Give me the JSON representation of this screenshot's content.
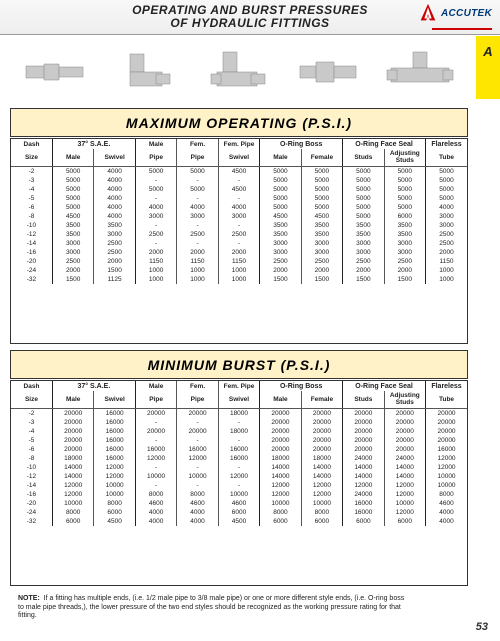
{
  "page_number": "53",
  "side_tab": "A",
  "header": {
    "title_line1": "OPERATING AND BURST PRESSURES",
    "title_line2": "OF HYDRAULIC FITTINGS",
    "brand_name": "ACCUTEK"
  },
  "section1_title": "MAXIMUM OPERATING (P.S.I.)",
  "section2_title": "MINIMUM BURST (P.S.I.)",
  "col_groups": {
    "dash": "Dash",
    "size": "Size",
    "sae": "37° S.A.E.",
    "sae_male": "Male",
    "sae_swivel": "Swivel",
    "male_pipe": "Male",
    "male_pipe2": "Pipe",
    "fem_pipe": "Fem.",
    "fem_pipe2": "Pipe",
    "fem_swivel": "Fem. Pipe",
    "fem_swivel2": "Swivel",
    "oring_boss": "O-Ring Boss",
    "ob_male": "Male",
    "ob_female": "Female",
    "face_seal": "O-Ring Face Seal",
    "fs_studs": "Studs",
    "fs_adj": "Adjusting",
    "fs_adj2": "Studs",
    "flareless": "Flareless",
    "flareless2": "Tube"
  },
  "dash_sizes": [
    "-2",
    "-3",
    "-4",
    "-5",
    "-6",
    "-8",
    "-10",
    "-12",
    "-14",
    "-16",
    "-20",
    "-24",
    "-32"
  ],
  "operating": [
    [
      "5000",
      "4000",
      "5000",
      "5000",
      "4500",
      "5000",
      "5000",
      "5000",
      "5000",
      "5000"
    ],
    [
      "5000",
      "4000",
      "-",
      "-",
      "-",
      "5000",
      "5000",
      "5000",
      "5000",
      "5000"
    ],
    [
      "5000",
      "4000",
      "5000",
      "5000",
      "4500",
      "5000",
      "5000",
      "5000",
      "5000",
      "5000"
    ],
    [
      "5000",
      "4000",
      "-",
      "-",
      "-",
      "5000",
      "5000",
      "5000",
      "5000",
      "5000"
    ],
    [
      "5000",
      "4000",
      "4000",
      "4000",
      "4000",
      "5000",
      "5000",
      "5000",
      "5000",
      "4000"
    ],
    [
      "4500",
      "4000",
      "3000",
      "3000",
      "3000",
      "4500",
      "4500",
      "5000",
      "6000",
      "3000"
    ],
    [
      "3500",
      "3500",
      "-",
      "-",
      "-",
      "3500",
      "3500",
      "3500",
      "3500",
      "3000"
    ],
    [
      "3500",
      "3000",
      "2500",
      "2500",
      "2500",
      "3500",
      "3500",
      "3500",
      "3500",
      "2500"
    ],
    [
      "3000",
      "2500",
      "-",
      "-",
      "-",
      "3000",
      "3000",
      "3000",
      "3000",
      "2500"
    ],
    [
      "3000",
      "2500",
      "2000",
      "2000",
      "2000",
      "3000",
      "3000",
      "3000",
      "3000",
      "2000"
    ],
    [
      "2500",
      "2000",
      "1150",
      "1150",
      "1150",
      "2500",
      "2500",
      "2500",
      "2500",
      "1150"
    ],
    [
      "2000",
      "1500",
      "1000",
      "1000",
      "1000",
      "2000",
      "2000",
      "2000",
      "2000",
      "1000"
    ],
    [
      "1500",
      "1125",
      "1000",
      "1000",
      "1000",
      "1500",
      "1500",
      "1500",
      "1500",
      "1000"
    ]
  ],
  "burst": [
    [
      "20000",
      "16000",
      "20000",
      "20000",
      "18000",
      "20000",
      "20000",
      "20000",
      "20000",
      "20000"
    ],
    [
      "20000",
      "16000",
      "-",
      "-",
      "-",
      "20000",
      "20000",
      "20000",
      "20000",
      "20000"
    ],
    [
      "20000",
      "16000",
      "20000",
      "20000",
      "18000",
      "20000",
      "20000",
      "20000",
      "20000",
      "20000"
    ],
    [
      "20000",
      "16000",
      "-",
      "-",
      "-",
      "20000",
      "20000",
      "20000",
      "20000",
      "20000"
    ],
    [
      "20000",
      "16000",
      "16000",
      "16000",
      "16000",
      "20000",
      "20000",
      "20000",
      "20000",
      "16000"
    ],
    [
      "18000",
      "16000",
      "12000",
      "12000",
      "16000",
      "18000",
      "18000",
      "24000",
      "24000",
      "12000"
    ],
    [
      "14000",
      "12000",
      "-",
      "-",
      "-",
      "14000",
      "14000",
      "14000",
      "14000",
      "12000"
    ],
    [
      "14000",
      "12000",
      "10000",
      "10000",
      "12000",
      "14000",
      "14000",
      "14000",
      "14000",
      "10000"
    ],
    [
      "12000",
      "10000",
      "-",
      "-",
      "-",
      "12000",
      "12000",
      "12000",
      "12000",
      "10000"
    ],
    [
      "12000",
      "10000",
      "8000",
      "8000",
      "10000",
      "12000",
      "12000",
      "24000",
      "12000",
      "8000"
    ],
    [
      "10000",
      "8000",
      "4600",
      "4600",
      "4600",
      "10000",
      "10000",
      "16000",
      "10000",
      "4600"
    ],
    [
      "8000",
      "6000",
      "4000",
      "4000",
      "6000",
      "8000",
      "8000",
      "16000",
      "12000",
      "4000"
    ],
    [
      "6000",
      "4500",
      "4000",
      "4000",
      "4500",
      "6000",
      "6000",
      "6000",
      "6000",
      "4000"
    ]
  ],
  "note_label": "NOTE:",
  "note_text": "If a fitting has multiple ends, (i.e. 1/2 male pipe to 3/8 male pipe) or one or more different style ends, (i.e. O-ring boss to male pipe threads,), the lower pressure of the two end styles should be recognized as the working pressure rating for that fitting.",
  "fitting_color": "#bdbdbd",
  "styles": {
    "tab_bg": "#ffe600",
    "band_bg": "#fff2c9",
    "border": "#333"
  }
}
